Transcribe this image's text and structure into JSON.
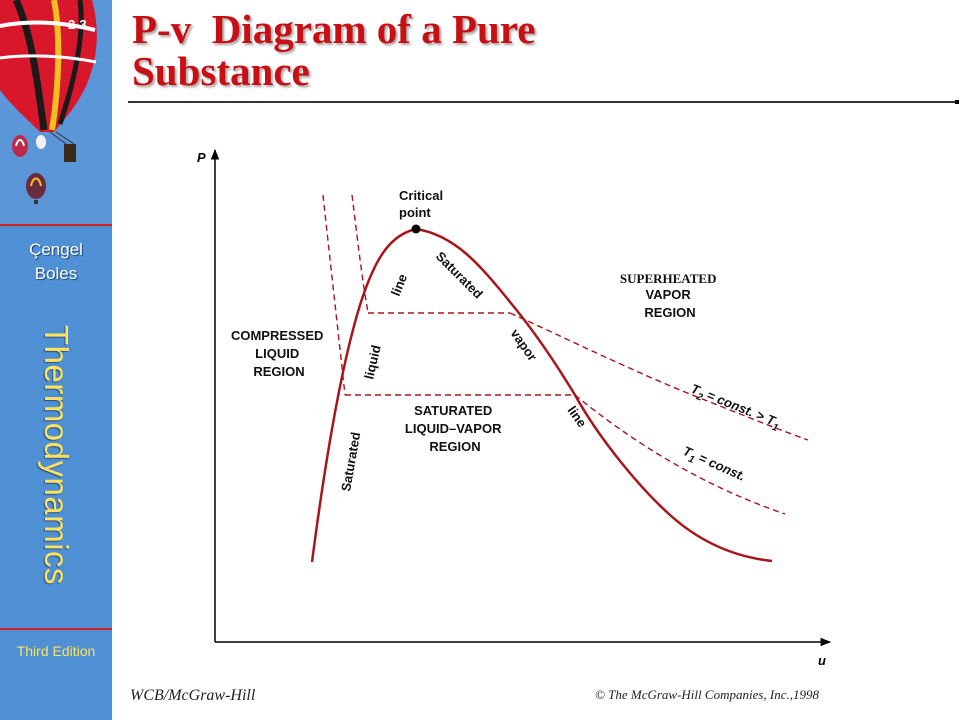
{
  "sidebar": {
    "slide_number": "2-3",
    "author_1": "Çengel",
    "author_2": "Boles",
    "book_title": "Thermodynamics",
    "edition": "Third Edition",
    "accent_color": "#4f8fd4",
    "text_color": "#ffe25c",
    "rule_color": "#d51e1e"
  },
  "slide": {
    "title_line_1": "P-v  Diagram of a Pure",
    "title_line_2": "Substance",
    "title_color": "#c80f14"
  },
  "diagram": {
    "y_axis_label": "P",
    "x_axis_label": "u",
    "critical_1": "Critical",
    "critical_2": "point",
    "sat_liquid_1": "Saturated",
    "sat_liquid_2": "liquid",
    "sat_liquid_3": "line",
    "sat_vapor_1": "Saturated",
    "sat_vapor_2": "vapor",
    "sat_vapor_3": "line",
    "compressed_1": "COMPRESSED",
    "compressed_2": "LIQUID",
    "compressed_3": "REGION",
    "superheated_1": "SUPERHEATED",
    "superheated_2": "VAPOR",
    "superheated_3": "REGION",
    "mixture_1": "SATURATED",
    "mixture_2": "LIQUID–VAPOR",
    "mixture_3": "REGION",
    "iso_t2": {
      "pre": "T",
      "sub": "2",
      "mid": " = const. > T",
      "sub2": "1"
    },
    "iso_t1": {
      "pre": "T",
      "sub": "1",
      "post": " = const."
    },
    "curve_color": "#a8151b"
  },
  "footer": {
    "publisher": "WCB/McGraw-Hill",
    "copyright": "© The McGraw-Hill Companies, Inc.,1998"
  }
}
